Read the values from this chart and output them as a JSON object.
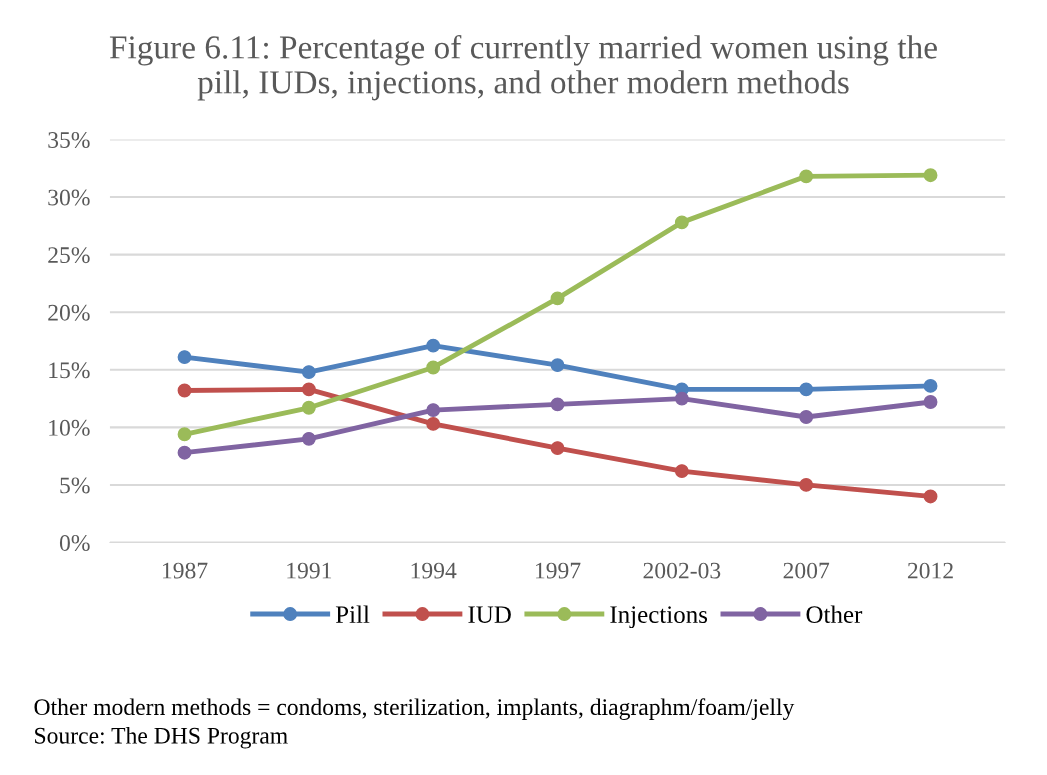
{
  "chart_data": {
    "type": "line",
    "title": "Figure 6.11: Percentage of currently married women using the\npill, IUDs, injections, and other modern methods",
    "categories": [
      "1987",
      "1991",
      "1994",
      "1997",
      "2002-03",
      "2007",
      "2012"
    ],
    "series": [
      {
        "name": "Pill",
        "color": "#4f81bd",
        "values": [
          16.1,
          14.8,
          17.1,
          15.4,
          13.3,
          13.3,
          13.6
        ]
      },
      {
        "name": "IUD",
        "color": "#c0504d",
        "values": [
          13.2,
          13.3,
          10.3,
          8.2,
          6.2,
          5.0,
          4.0
        ]
      },
      {
        "name": "Injections",
        "color": "#9bbb59",
        "values": [
          9.4,
          11.7,
          15.2,
          21.2,
          27.8,
          31.8,
          31.9
        ]
      },
      {
        "name": "Other",
        "color": "#8064a2",
        "values": [
          7.8,
          9.0,
          11.5,
          12.0,
          12.5,
          10.9,
          12.2
        ]
      }
    ],
    "ylim": [
      0,
      35
    ],
    "yticks": [
      {
        "value": 0,
        "label": "0%"
      },
      {
        "value": 5,
        "label": "5%"
      },
      {
        "value": 10,
        "label": "10%"
      },
      {
        "value": 15,
        "label": "15%"
      },
      {
        "value": 20,
        "label": "20%"
      },
      {
        "value": 25,
        "label": "25%"
      },
      {
        "value": 30,
        "label": "30%"
      },
      {
        "value": 35,
        "label": "35%"
      }
    ],
    "grid": "y",
    "legend": "bottom",
    "marker": "circle",
    "line_style": "solid",
    "annotations": [
      "Other modern methods = condoms, sterilization, implants, diagraphm/foam/jelly",
      "Source: The DHS Program"
    ]
  }
}
